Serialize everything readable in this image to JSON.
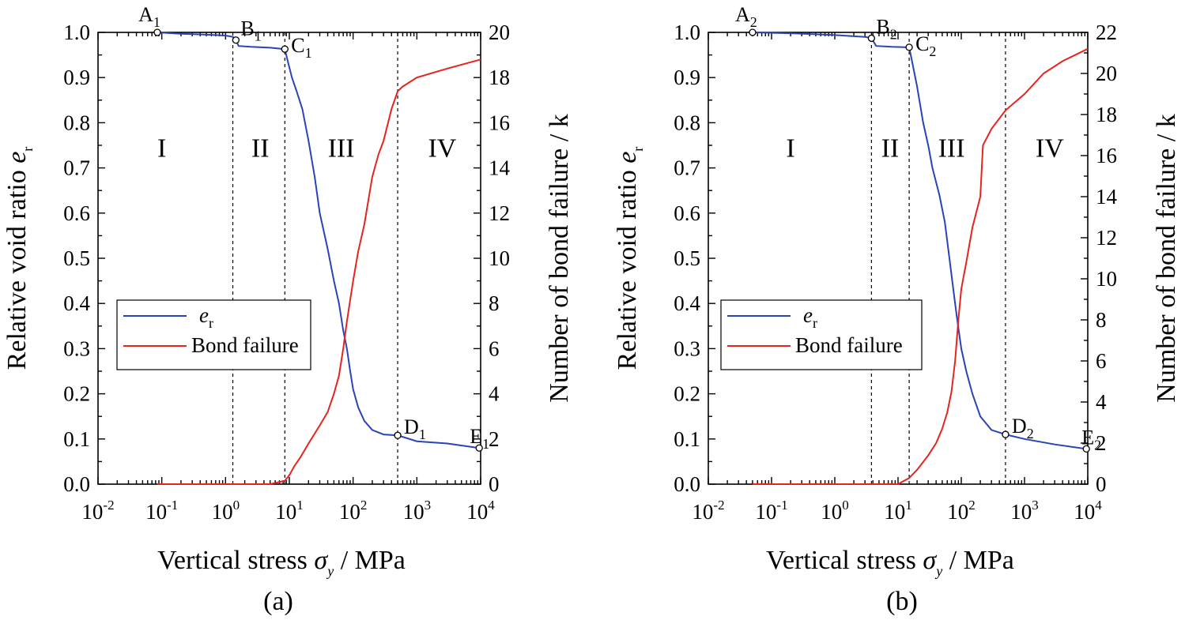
{
  "chart_data": [
    {
      "type": "line",
      "caption": "(a)",
      "xlabel_main": "Vertical stress ",
      "xlabel_symbol": "σ",
      "xlabel_symbol_sub": "y",
      "xlabel_unit": " / MPa",
      "ylabel_left_main": "Relative void ratio ",
      "ylabel_left_symbol": "e",
      "ylabel_left_symbol_sub": "r",
      "ylabel_right": "Number of bond failure / k",
      "x_scale": "log",
      "xlim": [
        0.01,
        10000
      ],
      "x_ticks": [
        0.01,
        0.1,
        1,
        10,
        100,
        1000,
        10000
      ],
      "x_tick_labels": [
        {
          "base": "10",
          "exp": "-2"
        },
        {
          "base": "10",
          "exp": "-1"
        },
        {
          "base": "10",
          "exp": "0"
        },
        {
          "base": "10",
          "exp": "1"
        },
        {
          "base": "10",
          "exp": "2"
        },
        {
          "base": "10",
          "exp": "3"
        },
        {
          "base": "10",
          "exp": "4"
        }
      ],
      "ylim_left": [
        0,
        1.0
      ],
      "y_ticks_left": [
        "0.0",
        "0.1",
        "0.2",
        "0.3",
        "0.4",
        "0.5",
        "0.6",
        "0.7",
        "0.8",
        "0.9",
        "1.0"
      ],
      "ylim_right": [
        0,
        20
      ],
      "y_ticks_right": [
        "0",
        "2",
        "4",
        "6",
        "8",
        "10",
        "12",
        "14",
        "16",
        "18",
        "20"
      ],
      "legend": {
        "placement": "lower-left",
        "entries": [
          {
            "label_main": "e",
            "label_sub": "r",
            "color": "#2a43b8"
          },
          {
            "label_main": "Bond failure",
            "label_sub": "",
            "color": "#e8231e"
          }
        ]
      },
      "regions": [
        {
          "label": "I",
          "x_center": 0.1
        },
        {
          "label": "II",
          "x_center": 3.5
        },
        {
          "label": "III",
          "x_center": 65
        },
        {
          "label": "IV",
          "x_center": 2500
        }
      ],
      "dividers_x": [
        1.3,
        8.5,
        500
      ],
      "points": [
        {
          "name": "A",
          "sub": "1",
          "x": 0.085,
          "y": 1.0
        },
        {
          "name": "B",
          "sub": "1",
          "x": 1.45,
          "y": 0.983
        },
        {
          "name": "C",
          "sub": "1",
          "x": 8.5,
          "y": 0.963
        },
        {
          "name": "D",
          "sub": "1",
          "x": 500,
          "y": 0.108
        },
        {
          "name": "E",
          "sub": "1",
          "x": 9500,
          "y": 0.08
        }
      ],
      "series": [
        {
          "name": "e_r",
          "axis": "left",
          "color": "#2a43b8",
          "x": [
            0.085,
            0.2,
            0.5,
            1.0,
            1.3,
            1.45,
            1.6,
            2.5,
            5,
            8.5,
            9.5,
            11,
            13,
            16,
            20,
            25,
            30,
            40,
            50,
            60,
            70,
            80,
            90,
            100,
            120,
            150,
            200,
            300,
            500,
            1000,
            3000,
            9500
          ],
          "y": [
            1.0,
            0.997,
            0.995,
            0.993,
            0.99,
            0.983,
            0.97,
            0.968,
            0.966,
            0.963,
            0.935,
            0.9,
            0.87,
            0.83,
            0.76,
            0.68,
            0.6,
            0.52,
            0.45,
            0.4,
            0.34,
            0.3,
            0.25,
            0.21,
            0.17,
            0.14,
            0.12,
            0.11,
            0.108,
            0.095,
            0.09,
            0.08
          ]
        },
        {
          "name": "Bond failure",
          "axis": "right",
          "color": "#e8231e",
          "x": [
            0.085,
            1.0,
            5,
            8.5,
            10,
            12,
            15,
            20,
            30,
            40,
            50,
            60,
            70,
            80,
            100,
            120,
            150,
            200,
            250,
            300,
            400,
            500,
            600,
            1000,
            3000,
            10000
          ],
          "y": [
            0,
            0,
            0,
            0.15,
            0.4,
            0.8,
            1.2,
            1.8,
            2.6,
            3.2,
            4.0,
            4.8,
            6.0,
            7.2,
            9.0,
            10.3,
            11.5,
            13.6,
            14.6,
            15.2,
            16.6,
            17.4,
            17.6,
            18.0,
            18.4,
            18.8
          ]
        }
      ]
    },
    {
      "type": "line",
      "caption": "(b)",
      "xlabel_main": "Vertical stress ",
      "xlabel_symbol": "σ",
      "xlabel_symbol_sub": "y",
      "xlabel_unit": " / MPa",
      "ylabel_left_main": "Relative void ratio ",
      "ylabel_left_symbol": "e",
      "ylabel_left_symbol_sub": "r",
      "ylabel_right": "Number of bond failure / k",
      "x_scale": "log",
      "xlim": [
        0.01,
        10000
      ],
      "x_ticks": [
        0.01,
        0.1,
        1,
        10,
        100,
        1000,
        10000
      ],
      "x_tick_labels": [
        {
          "base": "10",
          "exp": "-2"
        },
        {
          "base": "10",
          "exp": "-1"
        },
        {
          "base": "10",
          "exp": "0"
        },
        {
          "base": "10",
          "exp": "1"
        },
        {
          "base": "10",
          "exp": "2"
        },
        {
          "base": "10",
          "exp": "3"
        },
        {
          "base": "10",
          "exp": "4"
        }
      ],
      "ylim_left": [
        0,
        1.0
      ],
      "y_ticks_left": [
        "0.0",
        "0.1",
        "0.2",
        "0.3",
        "0.4",
        "0.5",
        "0.6",
        "0.7",
        "0.8",
        "0.9",
        "1.0"
      ],
      "ylim_right": [
        0,
        22
      ],
      "y_ticks_right": [
        "0",
        "2",
        "4",
        "6",
        "8",
        "10",
        "12",
        "14",
        "16",
        "18",
        "20",
        "22"
      ],
      "legend": {
        "placement": "lower-left",
        "entries": [
          {
            "label_main": "e",
            "label_sub": "r",
            "color": "#2a43b8"
          },
          {
            "label_main": "Bond failure",
            "label_sub": "",
            "color": "#e8231e"
          }
        ]
      },
      "regions": [
        {
          "label": "I",
          "x_center": 0.2
        },
        {
          "label": "II",
          "x_center": 7.5
        },
        {
          "label": "III",
          "x_center": 70
        },
        {
          "label": "IV",
          "x_center": 2500
        }
      ],
      "dividers_x": [
        3.8,
        15,
        500
      ],
      "points": [
        {
          "name": "A",
          "sub": "2",
          "x": 0.05,
          "y": 1.0
        },
        {
          "name": "B",
          "sub": "2",
          "x": 3.8,
          "y": 0.987
        },
        {
          "name": "C",
          "sub": "2",
          "x": 15,
          "y": 0.967
        },
        {
          "name": "D",
          "sub": "2",
          "x": 500,
          "y": 0.11
        },
        {
          "name": "E",
          "sub": "2",
          "x": 9500,
          "y": 0.078
        }
      ],
      "series": [
        {
          "name": "e_r",
          "axis": "left",
          "color": "#2a43b8",
          "x": [
            0.05,
            0.2,
            1,
            3,
            3.8,
            4.5,
            8,
            15,
            17,
            20,
            25,
            30,
            35,
            45,
            55,
            65,
            75,
            85,
            100,
            120,
            150,
            200,
            300,
            500,
            1000,
            3000,
            9500
          ],
          "y": [
            1.0,
            0.998,
            0.994,
            0.99,
            0.987,
            0.97,
            0.968,
            0.967,
            0.93,
            0.88,
            0.8,
            0.75,
            0.7,
            0.64,
            0.58,
            0.5,
            0.43,
            0.37,
            0.3,
            0.25,
            0.2,
            0.15,
            0.12,
            0.11,
            0.1,
            0.088,
            0.078
          ]
        },
        {
          "name": "Bond failure",
          "axis": "right",
          "color": "#e8231e",
          "x": [
            0.05,
            3.8,
            10,
            15,
            20,
            30,
            40,
            50,
            60,
            70,
            80,
            90,
            100,
            120,
            150,
            200,
            220,
            300,
            500,
            1000,
            2000,
            4000,
            10000
          ],
          "y": [
            0,
            0,
            0,
            0.3,
            0.7,
            1.4,
            2.0,
            2.7,
            3.5,
            4.5,
            6.0,
            8.0,
            9.5,
            10.8,
            12.5,
            14.0,
            16.5,
            17.3,
            18.2,
            19.0,
            20.0,
            20.6,
            21.2
          ]
        }
      ]
    }
  ]
}
